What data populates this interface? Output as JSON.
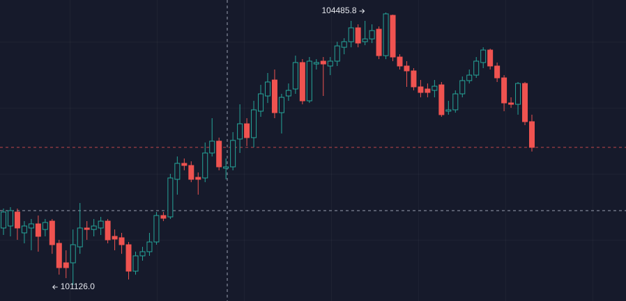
{
  "chart_data": {
    "type": "candlestick",
    "up_color": "#26a69a",
    "down_color": "#ef5350",
    "ylim": [
      100929,
      104640
    ],
    "open": [
      101829,
      101854,
      102026,
      101769,
      101829,
      101880,
      101811,
      101914,
      101640,
      101400,
      101400,
      101597,
      101829,
      101811,
      101829,
      101914,
      101726,
      101709,
      101623,
      101297,
      101486,
      101537,
      101657,
      101983,
      101966,
      102429,
      102626,
      102600,
      102454,
      102446,
      102754,
      102900,
      102566,
      102583,
      102926,
      103114,
      102943,
      103269,
      103457,
      103654,
      103251,
      103457,
      103543,
      103869,
      103397,
      103851,
      103886,
      103826,
      103886,
      104057,
      104126,
      104297,
      104126,
      104160,
      104280,
      103954,
      104451,
      103937,
      103826,
      103766,
      103569,
      103543,
      103526,
      103594,
      103269,
      103286,
      103483,
      103646,
      103714,
      103869,
      104023,
      103826,
      103680,
      103371,
      103354,
      103611,
      103140
    ],
    "high": [
      102069,
      102086,
      102069,
      101914,
      101940,
      101983,
      101940,
      101940,
      101683,
      101554,
      101811,
      102137,
      101914,
      101940,
      101966,
      101940,
      101811,
      101769,
      101657,
      101537,
      101597,
      101769,
      102026,
      102026,
      102497,
      102711,
      102686,
      102651,
      102514,
      102883,
      103183,
      102943,
      102686,
      103011,
      103354,
      103183,
      103397,
      103594,
      103740,
      103783,
      103483,
      103611,
      103954,
      103911,
      103937,
      103911,
      103937,
      103937,
      104126,
      104169,
      104383,
      104340,
      104383,
      104340,
      104314,
      104485.8,
      104460,
      103971,
      103886,
      103800,
      103654,
      103611,
      103654,
      103629,
      103397,
      103526,
      103697,
      103783,
      103937,
      104057,
      104040,
      103869,
      103714,
      103440,
      103629,
      103629,
      103226
    ],
    "low": [
      101743,
      101726,
      101683,
      101640,
      101554,
      101537,
      101726,
      101511,
      101254,
      101211,
      101126.0,
      101511,
      101683,
      101726,
      101743,
      101640,
      101554,
      101511,
      101194,
      101254,
      101426,
      101486,
      101623,
      101914,
      101940,
      102240,
      102540,
      102394,
      102240,
      102394,
      102711,
      102540,
      102429,
      102540,
      102754,
      102840,
      102823,
      103200,
      103371,
      103183,
      102994,
      103397,
      103483,
      103354,
      103371,
      103783,
      103457,
      103714,
      103826,
      103971,
      104057,
      104057,
      104083,
      104109,
      103911,
      103911,
      103886,
      103783,
      103569,
      103526,
      103440,
      103440,
      103440,
      103200,
      103226,
      103251,
      103440,
      103611,
      103680,
      103800,
      103783,
      103629,
      103269,
      103311,
      103226,
      103097,
      102772
    ],
    "close": [
      102026,
      102043,
      101829,
      101854,
      101880,
      101726,
      101897,
      101623,
      101340,
      101340,
      101623,
      101829,
      101811,
      101854,
      101914,
      101683,
      101692,
      101623,
      101297,
      101486,
      101537,
      101657,
      101983,
      101949,
      102446,
      102626,
      102600,
      102429,
      102429,
      102754,
      102900,
      102583,
      102583,
      102909,
      103114,
      102943,
      103286,
      103483,
      103629,
      103251,
      103440,
      103526,
      103869,
      103397,
      103886,
      103869,
      103851,
      103886,
      104074,
      104126,
      104297,
      104109,
      104160,
      104263,
      103954,
      104469,
      103937,
      103826,
      103766,
      103569,
      103500,
      103500,
      103577,
      103226,
      103286,
      103483,
      103646,
      103714,
      103886,
      104023,
      103826,
      103680,
      103371,
      103354,
      103611,
      103140,
      102823
    ],
    "annotations": [
      {
        "value": 104485.8,
        "label": "104485.8"
      },
      {
        "value": 101126.0,
        "label": "101126.0"
      }
    ]
  }
}
